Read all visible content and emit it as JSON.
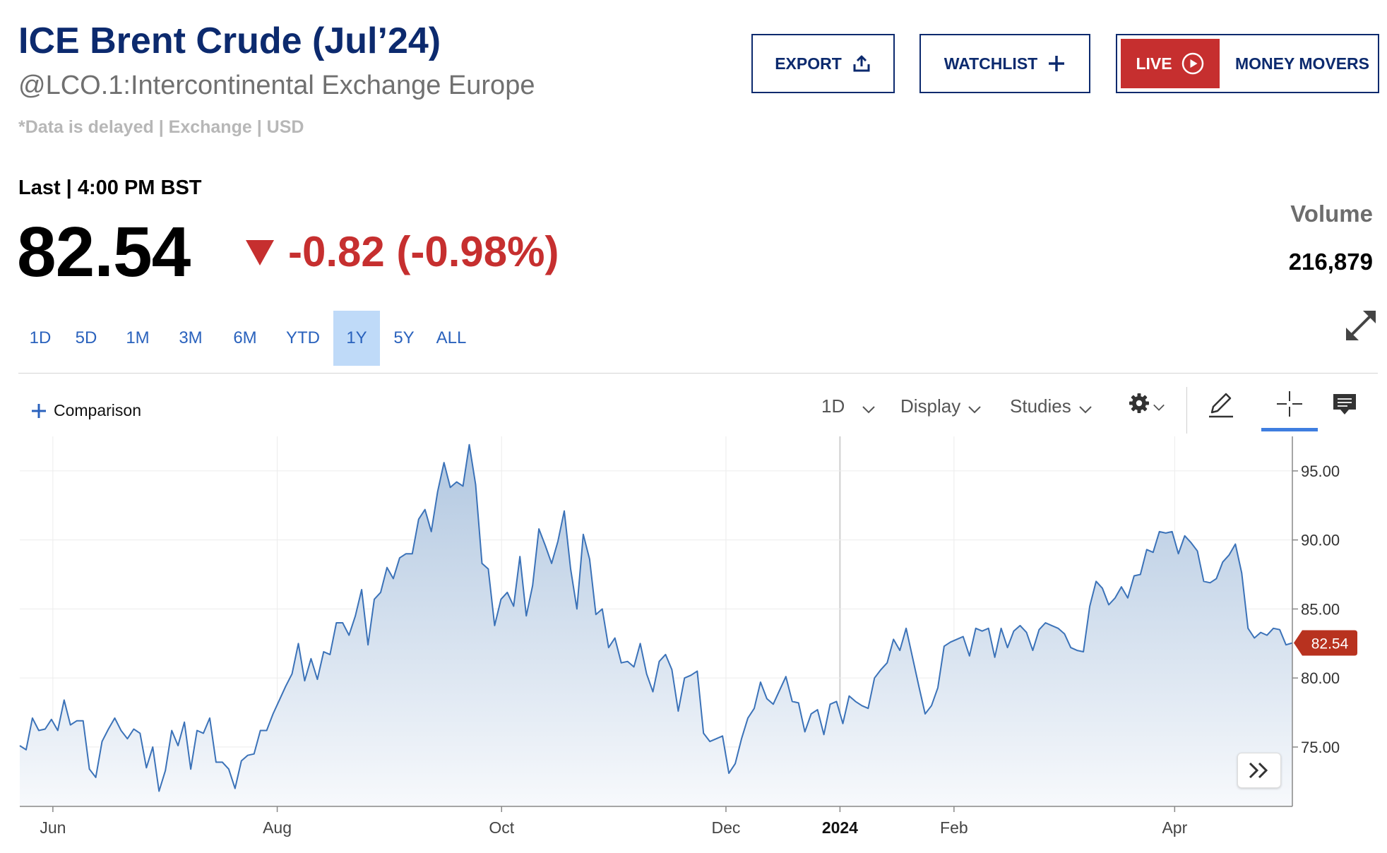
{
  "header": {
    "title": "ICE Brent Crude (Jul’24)",
    "subtitle": "@LCO.1:Intercontinental Exchange Europe",
    "note": "*Data is delayed | Exchange | USD",
    "export_label": "EXPORT",
    "watchlist_label": "WATCHLIST",
    "live_label": "LIVE",
    "money_movers_label": "MONEY MOVERS"
  },
  "quote": {
    "last_label": "Last | 4:00 PM BST",
    "price": "82.54",
    "change": "-0.82 (-0.98%)",
    "volume_label": "Volume",
    "volume": "216,879"
  },
  "ranges": [
    "1D",
    "5D",
    "1M",
    "3M",
    "6M",
    "YTD",
    "1Y",
    "5Y",
    "ALL"
  ],
  "active_range": "1Y",
  "toolbar": {
    "comparison_label": "Comparison",
    "interval_label": "1D",
    "display_label": "Display",
    "studies_label": "Studies"
  },
  "icons": [
    "upload-icon",
    "plus-icon",
    "play-circle-icon",
    "expand-icon",
    "gear-icon",
    "pencil-icon",
    "crosshair-icon",
    "comment-icon",
    "double-chevron-right-icon"
  ],
  "colors": {
    "brand": "#0c2a6e",
    "negative": "#c62f2f",
    "link": "#2a62bd",
    "active_range_bg": "#bfdaf8",
    "line": "#3b72b8",
    "area_top": "#b1c7e0",
    "area_bottom": "#f7f9fc"
  },
  "chart_data": {
    "type": "area",
    "series": [
      {
        "values": [
          75.1,
          74.8,
          77.1,
          76.2,
          76.3,
          77.0,
          76.2,
          78.4,
          76.6,
          76.9,
          76.9,
          73.4,
          72.8,
          75.4,
          76.3,
          77.1,
          76.2,
          75.6,
          76.3,
          76.0,
          73.5,
          75.0,
          71.8,
          73.3,
          76.2,
          75.1,
          76.8,
          73.4,
          76.2,
          76.0,
          77.1,
          73.9,
          73.9,
          73.4,
          72.0,
          74.0,
          74.4,
          74.5,
          76.2,
          76.2,
          77.4,
          78.4,
          79.4,
          80.3,
          82.5,
          79.8,
          81.4,
          79.9,
          81.9,
          81.7,
          84.0,
          84.0,
          83.1,
          84.5,
          86.4,
          82.4,
          85.7,
          86.2,
          88.0,
          87.2,
          88.7,
          89.0,
          89.0,
          91.5,
          92.2,
          90.6,
          93.5,
          95.6,
          93.8,
          94.2,
          93.9,
          96.9,
          94.0,
          88.3,
          87.9,
          83.8,
          85.7,
          86.2,
          85.2,
          88.8,
          84.5,
          86.7,
          90.8,
          89.6,
          88.3,
          89.9,
          92.1,
          87.9,
          85.0,
          90.4,
          88.6,
          84.6,
          85.0,
          82.2,
          82.9,
          81.1,
          81.2,
          80.8,
          82.5,
          80.3,
          79.0,
          81.2,
          81.7,
          80.6,
          77.6,
          80.0,
          80.2,
          80.5,
          76.0,
          75.4,
          75.6,
          75.8,
          73.1,
          73.8,
          75.6,
          77.1,
          77.8,
          79.7,
          78.5,
          78.1,
          79.1,
          80.1,
          78.3,
          78.2,
          76.1,
          77.4,
          77.7,
          75.9,
          78.1,
          78.3,
          76.7,
          78.7,
          78.3,
          78.0,
          77.8,
          80.0,
          80.6,
          81.1,
          82.8,
          82.0,
          83.6,
          81.5,
          79.4,
          77.4,
          78.0,
          79.3,
          82.3,
          82.6,
          82.8,
          83.0,
          81.6,
          83.6,
          83.4,
          83.6,
          81.5,
          83.6,
          82.2,
          83.4,
          83.8,
          83.3,
          82.0,
          83.5,
          84.0,
          83.8,
          83.6,
          83.2,
          82.2,
          82.0,
          81.9,
          85.2,
          87.0,
          86.5,
          85.3,
          85.8,
          86.6,
          85.8,
          87.4,
          87.5,
          89.3,
          89.1,
          90.6,
          90.5,
          90.6,
          89.0,
          90.3,
          89.8,
          89.2,
          87.0,
          86.9,
          87.2,
          88.4,
          88.9,
          89.7,
          87.6,
          83.6,
          82.9,
          83.3,
          83.1,
          83.6,
          83.5,
          82.4,
          82.54
        ]
      }
    ],
    "x_start": "2023-05-23",
    "x_end": "2024-05-03",
    "x_ticks": [
      "Jun",
      "Aug",
      "Oct",
      "Dec",
      "2024",
      "Feb",
      "Apr"
    ],
    "y_ticks": [
      "95.00",
      "90.00",
      "85.00",
      "80.00",
      "75.00"
    ],
    "ylim": [
      70.7,
      97.5
    ],
    "last_value_label": "82.54",
    "grid": true
  }
}
